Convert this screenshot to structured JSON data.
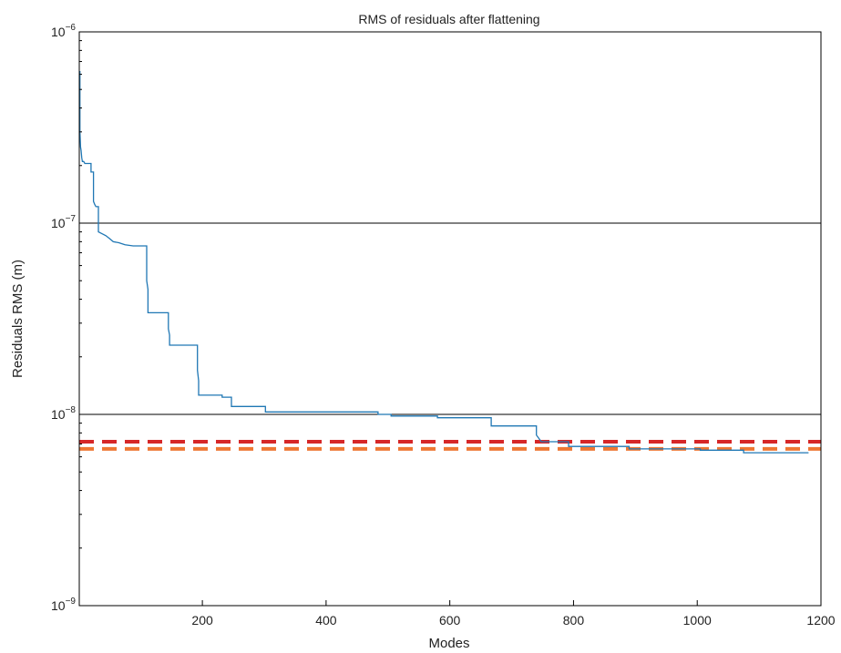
{
  "chart_data": {
    "type": "line",
    "title": "RMS of residuals after flattening",
    "xlabel": "Modes",
    "ylabel": "Residuals RMS (m)",
    "xlim": [
      1,
      1200
    ],
    "ylim": [
      1e-09,
      1e-06
    ],
    "yscale": "log",
    "grid": "y-major",
    "x_ticks": [
      200,
      400,
      600,
      800,
      1000,
      1200
    ],
    "x_tick_labels": [
      "200",
      "400",
      "600",
      "800",
      "1000",
      "1200"
    ],
    "y_ticks": [
      1e-09,
      1e-08,
      1e-07,
      1e-06
    ],
    "y_tick_labels": [
      {
        "base": "10",
        "exp": "−9"
      },
      {
        "base": "10",
        "exp": "−8"
      },
      {
        "base": "10",
        "exp": "−7"
      },
      {
        "base": "10",
        "exp": "−6"
      }
    ],
    "series": [
      {
        "line_style": "step",
        "color": "#1f77b4",
        "points": [
          [
            1,
            6.2e-07
          ],
          [
            2,
            6.2e-07
          ],
          [
            2,
            3e-07
          ],
          [
            3,
            2.5e-07
          ],
          [
            4,
            2.4e-07
          ],
          [
            5,
            2.2e-07
          ],
          [
            6,
            2.1e-07
          ],
          [
            8,
            2.1e-07
          ],
          [
            10,
            2.05e-07
          ],
          [
            20,
            2.05e-07
          ],
          [
            20,
            1.85e-07
          ],
          [
            24,
            1.85e-07
          ],
          [
            24,
            1.3e-07
          ],
          [
            26,
            1.25e-07
          ],
          [
            28,
            1.22e-07
          ],
          [
            32,
            1.22e-07
          ],
          [
            32,
            9e-08
          ],
          [
            38,
            8.8e-08
          ],
          [
            44,
            8.6e-08
          ],
          [
            50,
            8.3e-08
          ],
          [
            56,
            8e-08
          ],
          [
            65,
            7.9e-08
          ],
          [
            75,
            7.7e-08
          ],
          [
            88,
            7.6e-08
          ],
          [
            110,
            7.6e-08
          ],
          [
            110,
            5e-08
          ],
          [
            112,
            4.5e-08
          ],
          [
            112,
            3.4e-08
          ],
          [
            145,
            3.4e-08
          ],
          [
            145,
            2.8e-08
          ],
          [
            147,
            2.6e-08
          ],
          [
            147,
            2.3e-08
          ],
          [
            192,
            2.3e-08
          ],
          [
            192,
            1.7e-08
          ],
          [
            194,
            1.5e-08
          ],
          [
            194,
            1.26e-08
          ],
          [
            232,
            1.26e-08
          ],
          [
            232,
            1.23e-08
          ],
          [
            247,
            1.23e-08
          ],
          [
            247,
            1.1e-08
          ],
          [
            302,
            1.1e-08
          ],
          [
            302,
            1.03e-08
          ],
          [
            484,
            1.03e-08
          ],
          [
            484,
            1e-08
          ],
          [
            505,
            1e-08
          ],
          [
            505,
            9.8e-09
          ],
          [
            580,
            9.8e-09
          ],
          [
            580,
            9.6e-09
          ],
          [
            667,
            9.6e-09
          ],
          [
            667,
            8.7e-09
          ],
          [
            740,
            8.7e-09
          ],
          [
            740,
            7.8e-09
          ],
          [
            748,
            7.2e-09
          ],
          [
            792,
            7.2e-09
          ],
          [
            792,
            6.8e-09
          ],
          [
            890,
            6.8e-09
          ],
          [
            890,
            6.6e-09
          ],
          [
            1005,
            6.6e-09
          ],
          [
            1005,
            6.5e-09
          ],
          [
            1075,
            6.5e-09
          ],
          [
            1075,
            6.3e-09
          ],
          [
            1180,
            6.3e-09
          ]
        ]
      }
    ],
    "reference_lines": [
      {
        "y": 7.2e-09,
        "color": "#d62728",
        "style": "dashed"
      },
      {
        "y": 6.6e-09,
        "color": "#ee7733",
        "style": "dashed"
      }
    ]
  }
}
